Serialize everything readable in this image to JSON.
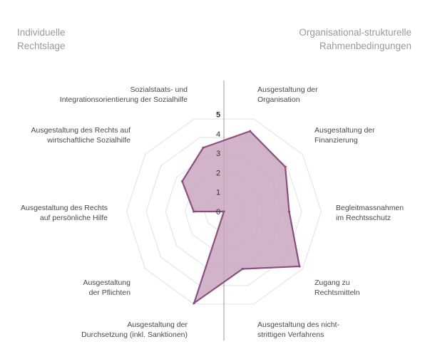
{
  "sections": {
    "left": [
      "Individuelle",
      "Rechtslage"
    ],
    "right": [
      "Organisational-strukturelle",
      "Rahmenbedingungen"
    ]
  },
  "chart_data": {
    "type": "radar",
    "scale_min": 0,
    "scale_max": 5,
    "ticks": [
      "0",
      "1",
      "2",
      "3",
      "4",
      "5"
    ],
    "axes": [
      {
        "label": [
          "Ausgestaltung der",
          "Organisation"
        ],
        "value": 4.35
      },
      {
        "label": [
          "Ausgestaltung der",
          "Finanzierung"
        ],
        "value": 3.9
      },
      {
        "label": [
          "Begleitmassnahmen",
          "im Rechtsschutz"
        ],
        "value": 3.35
      },
      {
        "label": [
          "Zugang zu",
          "Rechtsmitteln"
        ],
        "value": 4.8
      },
      {
        "label": [
          "Ausgestaltung des nicht-",
          "strittigen Verfahrens"
        ],
        "value": 3.1
      },
      {
        "label": [
          "Ausgestaltung der",
          "Durchsetzung (inkl. Sanktionen)"
        ],
        "value": 4.95
      },
      {
        "label": [
          "Ausgestaltung",
          "der Pflichten"
        ],
        "value": 0.0
      },
      {
        "label": [
          "Ausgestaltung des Rechts",
          "auf persönliche Hilfe"
        ],
        "value": 1.55
      },
      {
        "label": [
          "Ausgestaltung des Rechts auf",
          "wirtschaftliche Sozialhilfe"
        ],
        "value": 2.65
      },
      {
        "label": [
          "Sozialstaats- und",
          "Integrationsorientierung der Sozialhilfe"
        ],
        "value": 3.45
      }
    ],
    "colors": {
      "fill": "#c9a7c0",
      "stroke": "#8c4e7e",
      "grid": "#e6e6e6",
      "divider": "#9a9a9a",
      "label": "#4a4a4a",
      "tick": "#333333"
    }
  }
}
